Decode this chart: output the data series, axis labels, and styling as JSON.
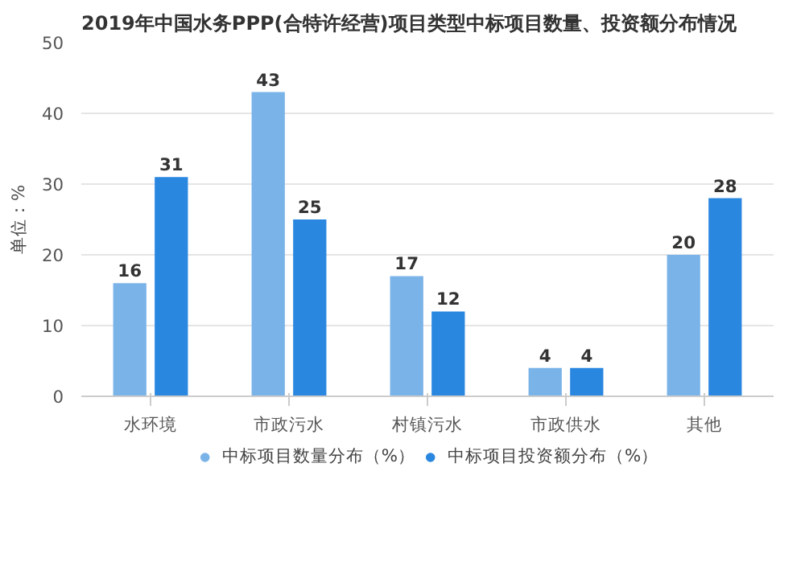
{
  "chart_data": {
    "type": "bar",
    "title": "2019年中国水务PPP(合特许经营)项目类型中标项目数量、投资额分布情况",
    "ylabel": "单位：%",
    "categories": [
      "水环境",
      "市政污水",
      "村镇污水",
      "市政供水",
      "其他"
    ],
    "series": [
      {
        "name": "中标项目数量分布（%）",
        "color": "#7ab3e8",
        "values": [
          16,
          43,
          17,
          4,
          20
        ]
      },
      {
        "name": "中标项目投资额分布（%）",
        "color": "#2a87e0",
        "values": [
          31,
          25,
          12,
          4,
          28
        ]
      }
    ],
    "ylim": [
      0,
      50
    ],
    "yticks": [
      0,
      10,
      20,
      30,
      40,
      50
    ],
    "grid": "y",
    "legend": "bottom",
    "data_labels": true
  }
}
